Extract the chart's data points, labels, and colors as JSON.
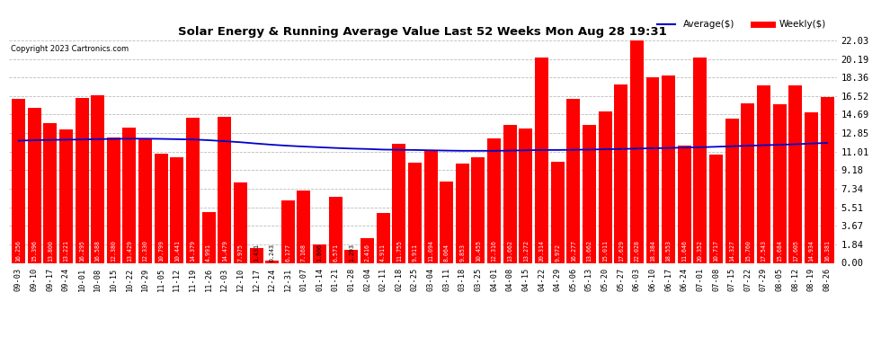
{
  "title": "Solar Energy & Running Average Value Last 52 Weeks Mon Aug 28 19:31",
  "copyright": "Copyright 2023 Cartronics.com",
  "legend_avg": "Average($)",
  "legend_weekly": "Weekly($)",
  "bar_color": "#ff0000",
  "avg_line_color": "#0000cd",
  "background_color": "#ffffff",
  "grid_color": "#bbbbbb",
  "ylabel_right_values": [
    0.0,
    1.84,
    3.67,
    5.51,
    7.34,
    9.18,
    11.01,
    12.85,
    14.69,
    16.52,
    18.36,
    20.19,
    22.03
  ],
  "categories": [
    "09-03",
    "09-10",
    "09-17",
    "09-24",
    "10-01",
    "10-08",
    "10-15",
    "10-22",
    "10-29",
    "11-05",
    "11-12",
    "11-19",
    "11-26",
    "12-03",
    "12-10",
    "12-17",
    "12-24",
    "12-31",
    "01-07",
    "01-14",
    "01-21",
    "01-28",
    "02-04",
    "02-11",
    "02-18",
    "02-25",
    "03-04",
    "03-11",
    "03-18",
    "03-25",
    "04-01",
    "04-08",
    "04-15",
    "04-22",
    "04-29",
    "05-06",
    "05-13",
    "05-20",
    "05-27",
    "06-03",
    "06-10",
    "06-17",
    "06-24",
    "07-01",
    "07-08",
    "07-15",
    "07-22",
    "07-29",
    "08-05",
    "08-12",
    "08-19",
    "08-26"
  ],
  "weekly_values": [
    16.256,
    15.396,
    13.8,
    13.221,
    16.295,
    16.588,
    12.38,
    13.429,
    12.33,
    10.799,
    10.441,
    14.379,
    4.991,
    14.479,
    7.975,
    1.431,
    0.243,
    6.177,
    7.168,
    1.806,
    6.571,
    1.293,
    2.416,
    4.911,
    11.755,
    9.911,
    11.094,
    8.064,
    9.853,
    10.455,
    12.316,
    13.662,
    13.272,
    20.314,
    9.972,
    16.277,
    13.662,
    15.011,
    17.629,
    22.028,
    18.384,
    18.553,
    11.646,
    20.352,
    10.717,
    14.327,
    15.76,
    17.543,
    15.684,
    17.605,
    14.934,
    16.381
  ],
  "avg_values": [
    12.1,
    12.15,
    12.18,
    12.2,
    12.22,
    12.25,
    12.28,
    12.3,
    12.3,
    12.28,
    12.25,
    12.22,
    12.15,
    12.05,
    11.95,
    11.82,
    11.7,
    11.6,
    11.52,
    11.45,
    11.38,
    11.32,
    11.28,
    11.22,
    11.2,
    11.18,
    11.15,
    11.12,
    11.1,
    11.1,
    11.1,
    11.12,
    11.15,
    11.18,
    11.18,
    11.2,
    11.22,
    11.25,
    11.28,
    11.32,
    11.35,
    11.38,
    11.42,
    11.45,
    11.5,
    11.55,
    11.6,
    11.65,
    11.7,
    11.75,
    11.82,
    11.88
  ]
}
